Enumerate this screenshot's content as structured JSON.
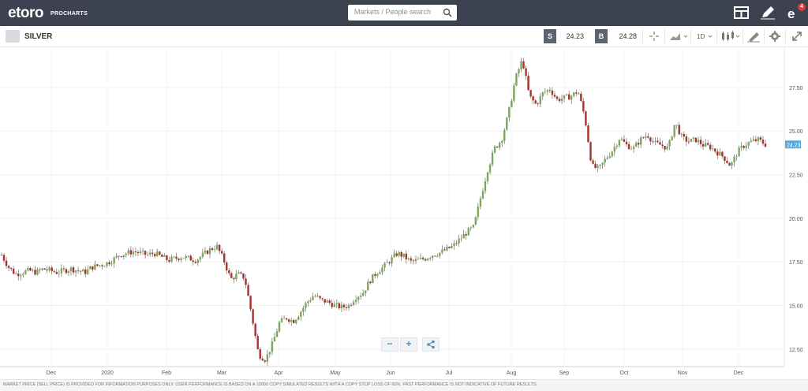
{
  "header": {
    "logo_text": "etoro",
    "logo_sub": "PROCHARTS",
    "search_placeholder": "Markets / People search",
    "notification_count": "4",
    "icons": [
      "layout-icon",
      "pencil-icon",
      "user-menu-icon"
    ]
  },
  "instrument": {
    "name": "SILVER",
    "sell_label": "S",
    "sell_price": "24.23",
    "buy_label": "B",
    "buy_price": "24.28",
    "timeframe": "1D"
  },
  "colors": {
    "up": "#7ca65c",
    "down": "#a8322a",
    "topbar": "#3d4250",
    "price_tag": "#5aa9dc"
  },
  "chart_data": {
    "type": "candlestick",
    "y_ticks": [
      "27.50",
      "25.00",
      "22.50",
      "20.00",
      "17.50",
      "15.00",
      "12.50"
    ],
    "y_tick_values": [
      27.5,
      25.0,
      22.5,
      20.0,
      17.5,
      15.0,
      12.5
    ],
    "ylim": [
      11.5,
      29.8
    ],
    "x_tick_labels": [
      "Dec",
      "2020",
      "Feb",
      "Mar",
      "Apr",
      "May",
      "Jun",
      "Jul",
      "Aug",
      "Sep",
      "Oct",
      "Nov",
      "Dec"
    ],
    "last_price_label": "24.23",
    "last_price": 24.23,
    "close_series": [
      17.9,
      17.2,
      16.8,
      16.9,
      17.0,
      16.9,
      17.1,
      17.0,
      16.9,
      17.0,
      17.1,
      17.0,
      16.9,
      17.2,
      17.3,
      17.4,
      17.6,
      17.9,
      18.0,
      18.1,
      18.0,
      17.9,
      18.0,
      17.8,
      17.6,
      17.7,
      17.8,
      17.7,
      17.6,
      17.9,
      18.2,
      18.4,
      17.6,
      16.5,
      16.8,
      16.6,
      14.5,
      12.2,
      11.9,
      12.8,
      14.0,
      14.3,
      14.1,
      14.6,
      15.2,
      15.6,
      15.3,
      15.2,
      15.0,
      14.9,
      15.0,
      15.5,
      15.7,
      16.4,
      16.9,
      17.2,
      17.6,
      18.0,
      17.8,
      17.5,
      17.6,
      17.7,
      17.9,
      18.0,
      18.2,
      18.4,
      18.8,
      19.2,
      19.5,
      21.2,
      22.8,
      24.0,
      24.5,
      26.0,
      28.0,
      29.1,
      27.0,
      26.5,
      27.2,
      27.4,
      26.8,
      26.9,
      27.0,
      27.3,
      25.8,
      23.0,
      22.8,
      23.4,
      23.9,
      24.6,
      24.2,
      24.0,
      24.5,
      24.8,
      24.3,
      24.2,
      24.0,
      25.5,
      24.6,
      24.4,
      24.5,
      24.2,
      24.1,
      23.8,
      23.5,
      23.0,
      23.8,
      24.2,
      24.4,
      24.5,
      24.23
    ]
  },
  "toolbar": {
    "zoom_out": "−",
    "zoom_in": "+"
  },
  "footer_text": "MARKET PRICE (SELL PRICE) IS PROVIDED FOR INFORMATION PURPOSES ONLY. USER PERFORMANCE IS BASED ON A 10000 COPY SIMULATED RESULTS WITH A COPY STOP LOSS OF 60%. PAST PERFORMANCE IS NOT INDICATIVE OF FUTURE RESULTS"
}
